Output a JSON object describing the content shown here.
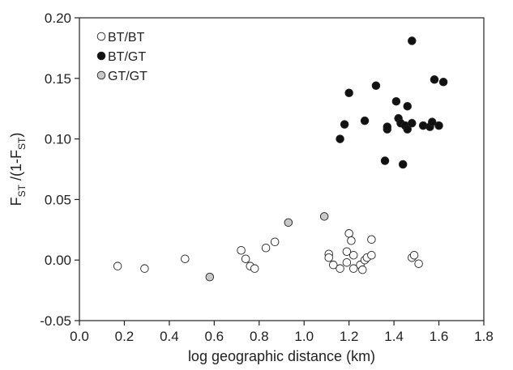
{
  "chart_data": {
    "type": "scatter",
    "xlabel": "log geographic distance (km)",
    "ylabel": {
      "base": "F",
      "sub1": "ST",
      "mid": " /(1-F",
      "sub2": "ST",
      "end": ")"
    },
    "xlim": [
      0.0,
      1.8
    ],
    "ylim": [
      -0.05,
      0.2
    ],
    "xticks": [
      "0.0",
      "0.2",
      "0.4",
      "0.6",
      "0.8",
      "1.0",
      "1.2",
      "1.4",
      "1.6",
      "1.8"
    ],
    "yticks": [
      "-0.05",
      "0.00",
      "0.05",
      "0.10",
      "0.15",
      "0.20"
    ],
    "grid": false,
    "legend_position": "top-left",
    "series": [
      {
        "name": "BT/BT",
        "fill": "#ffffff",
        "points": [
          [
            0.17,
            -0.005
          ],
          [
            0.29,
            -0.007
          ],
          [
            0.47,
            0.001
          ],
          [
            0.72,
            0.008
          ],
          [
            0.74,
            0.001
          ],
          [
            0.76,
            -0.005
          ],
          [
            0.78,
            -0.007
          ],
          [
            0.83,
            0.01
          ],
          [
            0.87,
            0.015
          ],
          [
            1.11,
            0.005
          ],
          [
            1.11,
            0.002
          ],
          [
            1.13,
            -0.004
          ],
          [
            1.16,
            -0.007
          ],
          [
            1.19,
            -0.002
          ],
          [
            1.19,
            0.007
          ],
          [
            1.2,
            0.022
          ],
          [
            1.21,
            0.016
          ],
          [
            1.22,
            0.004
          ],
          [
            1.22,
            -0.007
          ],
          [
            1.25,
            -0.004
          ],
          [
            1.26,
            -0.008
          ],
          [
            1.27,
            0.0
          ],
          [
            1.28,
            0.002
          ],
          [
            1.3,
            0.017
          ],
          [
            1.3,
            0.004
          ],
          [
            1.48,
            0.002
          ],
          [
            1.49,
            0.004
          ],
          [
            1.51,
            -0.003
          ]
        ]
      },
      {
        "name": "BT/GT",
        "fill": "#111111",
        "points": [
          [
            1.16,
            0.1
          ],
          [
            1.18,
            0.112
          ],
          [
            1.2,
            0.138
          ],
          [
            1.27,
            0.115
          ],
          [
            1.32,
            0.144
          ],
          [
            1.36,
            0.082
          ],
          [
            1.37,
            0.108
          ],
          [
            1.37,
            0.11
          ],
          [
            1.41,
            0.131
          ],
          [
            1.42,
            0.117
          ],
          [
            1.43,
            0.113
          ],
          [
            1.44,
            0.079
          ],
          [
            1.45,
            0.111
          ],
          [
            1.46,
            0.127
          ],
          [
            1.46,
            0.108
          ],
          [
            1.48,
            0.181
          ],
          [
            1.48,
            0.113
          ],
          [
            1.53,
            0.111
          ],
          [
            1.56,
            0.11
          ],
          [
            1.57,
            0.114
          ],
          [
            1.58,
            0.149
          ],
          [
            1.6,
            0.111
          ],
          [
            1.62,
            0.147
          ]
        ]
      },
      {
        "name": "GT/GT",
        "fill": "#c8c8c8",
        "points": [
          [
            0.58,
            -0.014
          ],
          [
            0.93,
            0.031
          ],
          [
            1.09,
            0.036
          ]
        ]
      }
    ]
  }
}
